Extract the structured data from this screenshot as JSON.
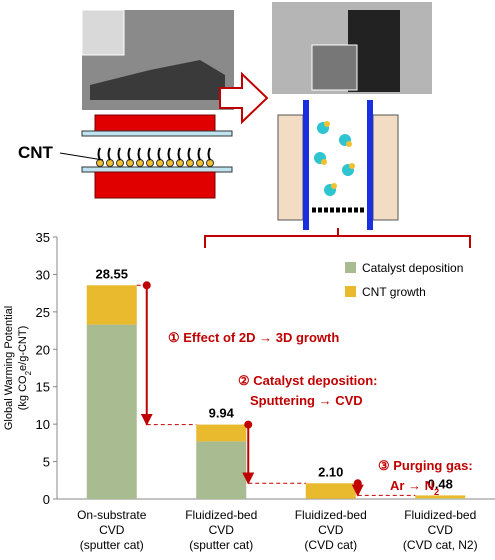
{
  "diagram_label": "CNT",
  "chart_data": {
    "type": "stacked-bar",
    "categories": [
      [
        "On-substrate",
        "CVD",
        "(sputter cat)"
      ],
      [
        "Fluidized-bed",
        "CVD",
        "(sputter cat)"
      ],
      [
        "Fluidized-bed",
        "CVD",
        "(CVD cat)"
      ],
      [
        "Fluidized-bed",
        "CVD",
        "(CVD cat, N2)"
      ]
    ],
    "series": [
      {
        "name": "Catalyst deposition",
        "color": "#a9bb91",
        "values": [
          23.3,
          7.7,
          0.05,
          0.1
        ]
      },
      {
        "name": "CNT growth",
        "color": "#e9b92e",
        "values": [
          5.25,
          2.24,
          2.05,
          0.38
        ]
      }
    ],
    "total_labels": [
      "28.55",
      "9.94",
      "2.10",
      "0.48"
    ],
    "y_label": {
      "line1": "Global Warming Potential",
      "line2": [
        "(kg CO",
        "2",
        "e/g-CNT)"
      ]
    },
    "ylim": [
      0,
      35
    ],
    "yticks": [
      0,
      5,
      10,
      15,
      20,
      25,
      30,
      35
    ],
    "annotations": [
      {
        "lines": [
          [
            "① Effect of 2D → 3D growth"
          ]
        ]
      },
      {
        "lines": [
          [
            "② Catalyst deposition:"
          ],
          [
            "Sputtering → CVD"
          ]
        ]
      },
      {
        "lines": [
          [
            "③ Purging gas:"
          ],
          [
            "Ar → N",
            "2"
          ]
        ]
      }
    ],
    "legend": "upper right"
  }
}
